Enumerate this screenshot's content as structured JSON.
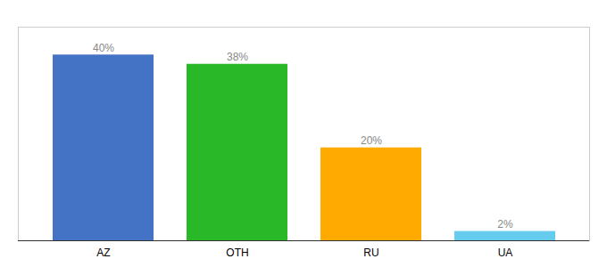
{
  "chart_data": {
    "type": "bar",
    "categories": [
      "AZ",
      "OTH",
      "RU",
      "UA"
    ],
    "values": [
      40,
      38,
      20,
      2
    ],
    "value_labels": [
      "40%",
      "38%",
      "20%",
      "2%"
    ],
    "colors": [
      "#4472c4",
      "#28b828",
      "#ffaa00",
      "#66ccee"
    ],
    "ylim": [
      0,
      46
    ],
    "grid": false,
    "data_labels": true,
    "tick_labels": "x"
  }
}
